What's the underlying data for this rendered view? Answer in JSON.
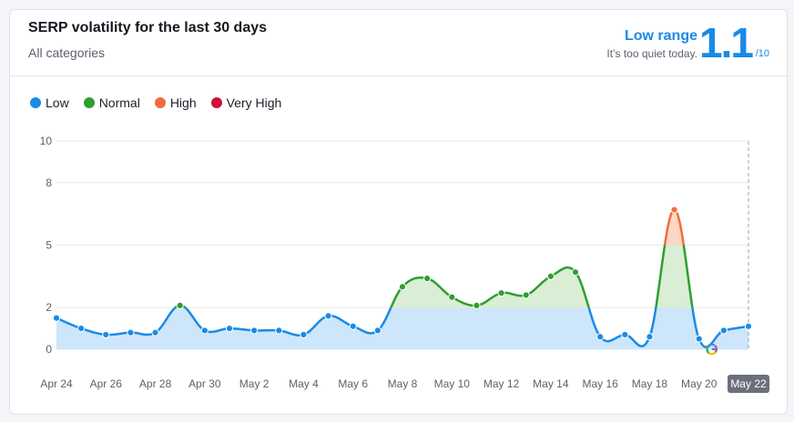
{
  "header": {
    "title": "SERP volatility for the last 30 days",
    "subtitle": "All categories",
    "range_label": "Low range",
    "range_note": "It’s too quiet today.",
    "score": "1.1",
    "score_max": "/10"
  },
  "legend": [
    {
      "label": "Low",
      "color": "#1a8ae6"
    },
    {
      "label": "Normal",
      "color": "#2e9e2e"
    },
    {
      "label": "High",
      "color": "#f26c3b"
    },
    {
      "label": "Very High",
      "color": "#d10f3a"
    }
  ],
  "icons": {
    "google_marker": "google-icon"
  },
  "chart_data": {
    "type": "area",
    "title": "",
    "xlabel": "",
    "ylabel": "",
    "ylim": [
      0,
      10
    ],
    "y_ticks": [
      0,
      2,
      5,
      8,
      10
    ],
    "x_tick_labels": [
      "Apr 24",
      "Apr 26",
      "Apr 28",
      "Apr 30",
      "May 2",
      "May 4",
      "May 6",
      "May 8",
      "May 10",
      "May 12",
      "May 14",
      "May 16",
      "May 18",
      "May 20",
      "May 22"
    ],
    "highlight_label": "May 22",
    "thresholds": {
      "low_max": 2,
      "normal_max": 5,
      "high_max": 8
    },
    "colors": {
      "low": "#1a8ae6",
      "normal": "#2e9e2e",
      "high": "#f26c3b",
      "very_high": "#d10f3a"
    },
    "series": [
      {
        "x": [
          "Apr 24",
          "Apr 25",
          "Apr 26",
          "Apr 27",
          "Apr 28",
          "Apr 29",
          "Apr 30",
          "May 1",
          "May 2",
          "May 3",
          "May 4",
          "May 5",
          "May 6",
          "May 7",
          "May 8",
          "May 9",
          "May 10",
          "May 11",
          "May 12",
          "May 13",
          "May 14",
          "May 15",
          "May 16",
          "May 17",
          "May 18",
          "May 19",
          "May 20",
          "May 21",
          "May 22"
        ],
        "values": [
          1.5,
          1.0,
          0.7,
          0.8,
          0.8,
          2.1,
          0.9,
          1.0,
          0.9,
          0.9,
          0.7,
          1.6,
          1.1,
          0.9,
          3.0,
          3.4,
          2.5,
          2.1,
          2.7,
          2.6,
          3.5,
          3.7,
          0.6,
          0.7,
          0.6,
          6.7,
          0.5,
          0.9,
          1.1
        ]
      }
    ]
  }
}
